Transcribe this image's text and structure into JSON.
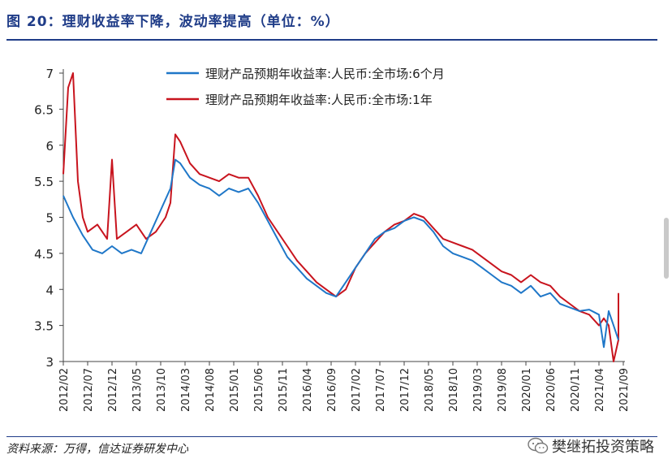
{
  "title": "图 20：理财收益率下降，波动率提高（单位：%）",
  "source": "资料来源：万得，信达证券研发中心",
  "watermark": {
    "icon": "wechat-icon",
    "text": "樊继拓投资策略"
  },
  "colors": {
    "title": "#1f3c88",
    "series_6m": "#1f77c8",
    "series_1y": "#c8141e",
    "axis": "#444444"
  },
  "chart_data": {
    "type": "line",
    "title": "",
    "xlabel": "",
    "ylabel": "",
    "ylim": [
      3,
      7
    ],
    "yticks": [
      "3",
      "3.5",
      "4",
      "4.5",
      "5",
      "5.5",
      "6",
      "6.5",
      "7"
    ],
    "xlim": [
      "2012-02",
      "2021-09"
    ],
    "xticks": [
      "2012/02",
      "2012/07",
      "2012/12",
      "2013/05",
      "2013/10",
      "2014/03",
      "2014/08",
      "2015/01",
      "2015/06",
      "2015/11",
      "2016/04",
      "2016/09",
      "2017/02",
      "2017/07",
      "2017/12",
      "2018/05",
      "2018/10",
      "2019/03",
      "2019/08",
      "2020/01",
      "2020/06",
      "2020/11",
      "2021/04",
      "2021/09"
    ],
    "grid": false,
    "legend_position": "top-right",
    "series": [
      {
        "name": "理财产品预期年收益率:人民币:全市场:6个月",
        "color": "#1f77c8",
        "x": [
          "2012-02",
          "2012-04",
          "2012-06",
          "2012-08",
          "2012-10",
          "2012-12",
          "2013-02",
          "2013-04",
          "2013-06",
          "2013-08",
          "2013-10",
          "2013-12",
          "2014-01",
          "2014-02",
          "2014-04",
          "2014-06",
          "2014-08",
          "2014-10",
          "2014-12",
          "2015-02",
          "2015-04",
          "2015-06",
          "2015-08",
          "2015-10",
          "2015-12",
          "2016-02",
          "2016-04",
          "2016-06",
          "2016-08",
          "2016-10",
          "2016-12",
          "2017-02",
          "2017-04",
          "2017-06",
          "2017-08",
          "2017-10",
          "2017-12",
          "2018-02",
          "2018-04",
          "2018-06",
          "2018-08",
          "2018-10",
          "2018-12",
          "2019-02",
          "2019-04",
          "2019-06",
          "2019-08",
          "2019-10",
          "2019-12",
          "2020-02",
          "2020-04",
          "2020-06",
          "2020-08",
          "2020-10",
          "2020-12",
          "2021-02",
          "2021-04",
          "2021-05",
          "2021-06",
          "2021-07",
          "2021-08"
        ],
        "y": [
          5.3,
          5.0,
          4.75,
          4.55,
          4.5,
          4.6,
          4.5,
          4.55,
          4.5,
          4.8,
          5.1,
          5.4,
          5.8,
          5.75,
          5.55,
          5.45,
          5.4,
          5.3,
          5.4,
          5.35,
          5.4,
          5.2,
          4.95,
          4.7,
          4.45,
          4.3,
          4.15,
          4.05,
          3.95,
          3.9,
          4.1,
          4.3,
          4.5,
          4.7,
          4.8,
          4.85,
          4.95,
          5.0,
          4.95,
          4.8,
          4.6,
          4.5,
          4.45,
          4.4,
          4.3,
          4.2,
          4.1,
          4.05,
          3.95,
          4.05,
          3.9,
          3.95,
          3.8,
          3.75,
          3.7,
          3.72,
          3.65,
          3.2,
          3.7,
          3.5,
          3.3
        ]
      },
      {
        "name": "理财产品预期年收益率:人民币:全市场:1年",
        "color": "#c8141e",
        "x": [
          "2012-02",
          "2012-03",
          "2012-04",
          "2012-05",
          "2012-06",
          "2012-07",
          "2012-09",
          "2012-11",
          "2012-12",
          "2013-01",
          "2013-03",
          "2013-05",
          "2013-07",
          "2013-09",
          "2013-11",
          "2013-12",
          "2014-01",
          "2014-02",
          "2014-04",
          "2014-06",
          "2014-08",
          "2014-10",
          "2014-12",
          "2015-02",
          "2015-04",
          "2015-06",
          "2015-08",
          "2015-10",
          "2015-12",
          "2016-02",
          "2016-04",
          "2016-06",
          "2016-08",
          "2016-10",
          "2016-12",
          "2017-02",
          "2017-04",
          "2017-06",
          "2017-08",
          "2017-10",
          "2017-12",
          "2018-02",
          "2018-04",
          "2018-06",
          "2018-08",
          "2018-10",
          "2018-12",
          "2019-02",
          "2019-04",
          "2019-06",
          "2019-08",
          "2019-10",
          "2019-12",
          "2020-02",
          "2020-04",
          "2020-06",
          "2020-08",
          "2020-10",
          "2020-12",
          "2021-02",
          "2021-04",
          "2021-05",
          "2021-06",
          "2021-07",
          "2021-08",
          "2021-08"
        ],
        "y": [
          5.6,
          6.8,
          7.0,
          5.5,
          5.0,
          4.8,
          4.9,
          4.7,
          5.8,
          4.7,
          4.8,
          4.9,
          4.7,
          4.8,
          5.0,
          5.2,
          6.15,
          6.05,
          5.75,
          5.6,
          5.55,
          5.5,
          5.6,
          5.55,
          5.55,
          5.3,
          5.0,
          4.8,
          4.6,
          4.4,
          4.25,
          4.1,
          4.0,
          3.9,
          4.0,
          4.3,
          4.5,
          4.65,
          4.8,
          4.9,
          4.95,
          5.05,
          5.0,
          4.85,
          4.7,
          4.65,
          4.6,
          4.55,
          4.45,
          4.35,
          4.25,
          4.2,
          4.1,
          4.2,
          4.1,
          4.05,
          3.9,
          3.8,
          3.7,
          3.65,
          3.5,
          3.6,
          3.5,
          3.0,
          3.3,
          3.95
        ]
      }
    ]
  }
}
